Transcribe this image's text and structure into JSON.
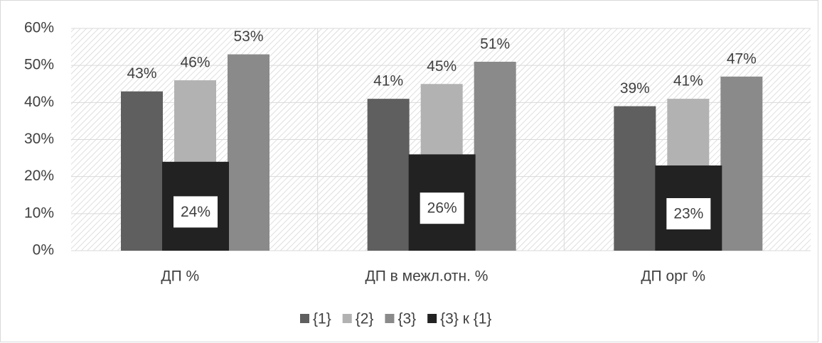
{
  "chart_data": {
    "type": "bar",
    "categories": [
      "ДП %",
      "ДП в межл.отн. %",
      "ДП орг %"
    ],
    "series": [
      {
        "name": "{1}",
        "color": "#5f5f5f",
        "values": [
          43,
          41,
          39
        ],
        "value_labels": [
          "43%",
          "41%",
          "39%"
        ]
      },
      {
        "name": "{2}",
        "color": "#b2b2b2",
        "values": [
          46,
          45,
          41
        ],
        "value_labels": [
          "46%",
          "45%",
          "41%"
        ]
      },
      {
        "name": "{3}",
        "color": "#8a8a8a",
        "values": [
          53,
          51,
          47
        ],
        "value_labels": [
          "53%",
          "51%",
          "47%"
        ]
      },
      {
        "name": "{3} к {1}",
        "color": "#222222",
        "values": [
          24,
          26,
          23
        ],
        "value_labels": [
          "24%",
          "26%",
          "23%"
        ]
      }
    ],
    "ylim": [
      0,
      60
    ],
    "yticks": [
      {
        "value": 0,
        "label": "0%"
      },
      {
        "value": 10,
        "label": "10%"
      },
      {
        "value": 20,
        "label": "20%"
      },
      {
        "value": 30,
        "label": "30%"
      },
      {
        "value": 40,
        "label": "40%"
      },
      {
        "value": 50,
        "label": "50%"
      },
      {
        "value": 60,
        "label": "60%"
      }
    ],
    "grid": true
  }
}
